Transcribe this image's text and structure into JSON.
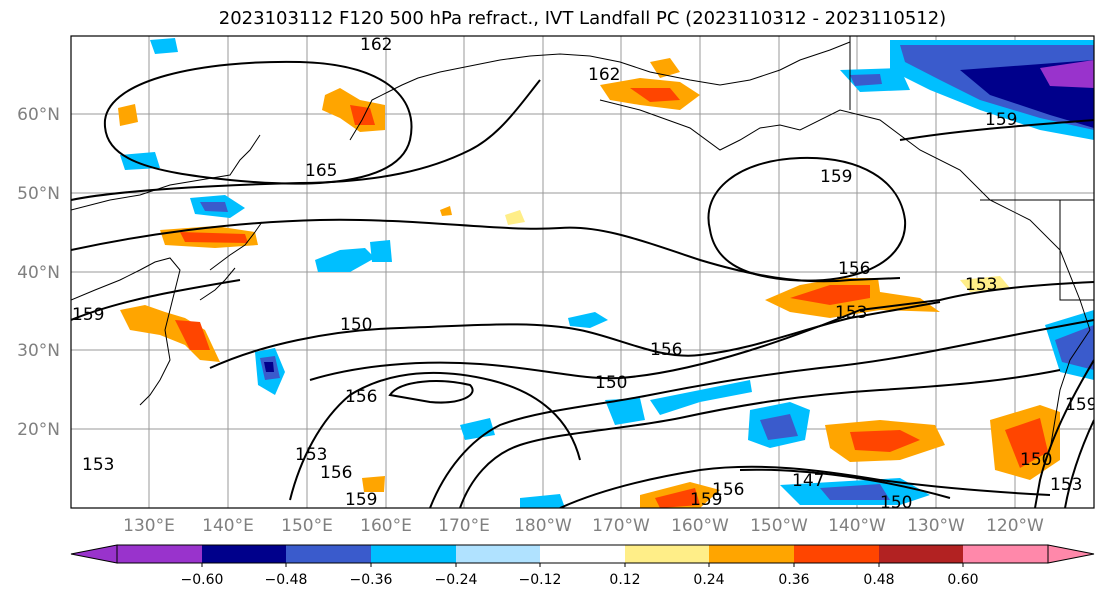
{
  "title": "2023103112 F120 500 hPa refract., IVT Landfall PC (2023110312 - 2023110512)",
  "lat_labels": [
    "60°N",
    "50°N",
    "40°N",
    "30°N",
    "20°N"
  ],
  "lon_labels": [
    "130°E",
    "140°E",
    "150°E",
    "160°E",
    "170°E",
    "180°W",
    "170°W",
    "160°W",
    "150°W",
    "140°W",
    "130°W",
    "120°W"
  ],
  "contour_labels": [
    "162",
    "162",
    "165",
    "159",
    "159",
    "156",
    "153",
    "153",
    "150",
    "156",
    "150",
    "156",
    "153",
    "156",
    "159",
    "147",
    "159",
    "150",
    "153",
    "156",
    "150",
    "159",
    "153",
    "159"
  ],
  "colorbar": {
    "ticks": [
      "−0.60",
      "−0.48",
      "−0.36",
      "−0.24",
      "−0.12",
      "0.12",
      "0.24",
      "0.36",
      "0.48",
      "0.60"
    ],
    "colors": [
      "#9933cc",
      "#00008b",
      "#3a5bcc",
      "#00bfff",
      "#b0e2ff",
      "#ffffff",
      "#ffee88",
      "#ffa500",
      "#ff4500",
      "#b22222",
      "#ff88aa"
    ]
  }
}
